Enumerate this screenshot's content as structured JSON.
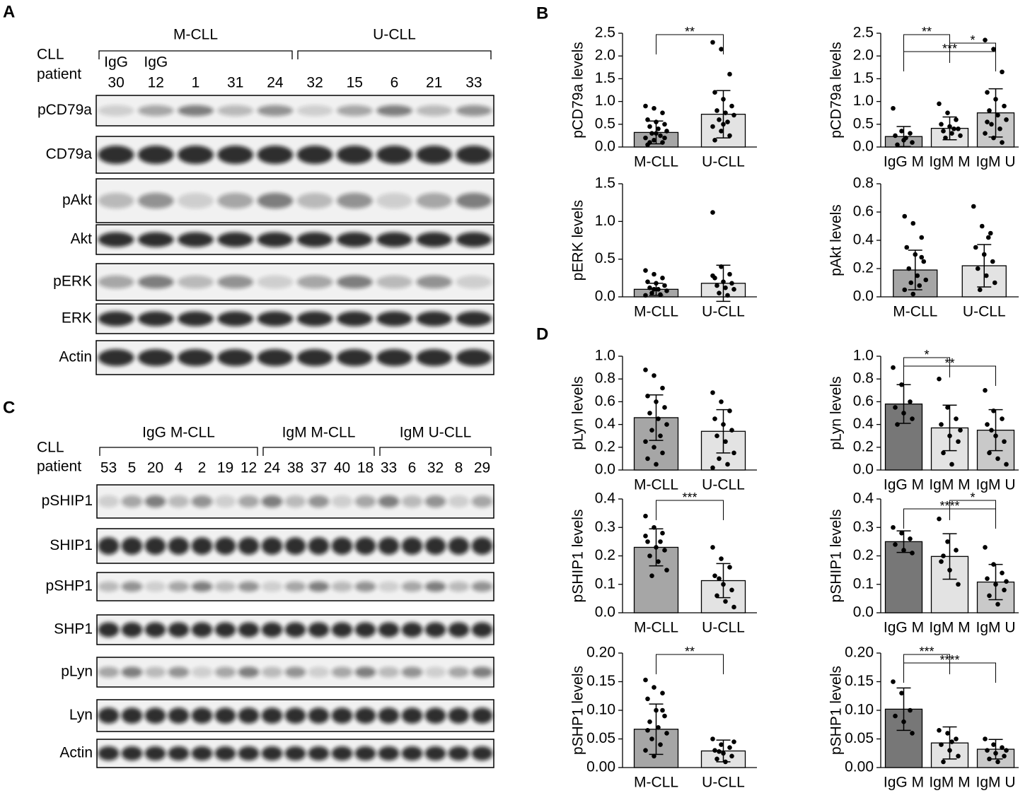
{
  "panel_labels": [
    "A",
    "B",
    "C",
    "D"
  ],
  "blots": [
    {
      "row_header": [
        "CLL",
        "patient"
      ],
      "groups": [
        {
          "label": "M-CLL",
          "lanes": [
            "30",
            "12",
            "1",
            "31",
            "24"
          ]
        },
        {
          "label": "U-CLL",
          "lanes": [
            "32",
            "15",
            "6",
            "21",
            "33"
          ]
        }
      ],
      "isotype_labels": [
        "IgG",
        "IgG"
      ],
      "rows": [
        "pCD79a",
        "CD79a",
        "pAkt",
        "Akt",
        "pERK",
        "ERK",
        "Actin"
      ]
    },
    {
      "row_header": [
        "CLL",
        "patient"
      ],
      "groups": [
        {
          "label": "IgG M-CLL",
          "lanes": [
            "53",
            "5",
            "20",
            "4",
            "2",
            "19",
            "12"
          ]
        },
        {
          "label": "IgM M-CLL",
          "lanes": [
            "24",
            "38",
            "37",
            "40",
            "18"
          ]
        },
        {
          "label": "IgM U-CLL",
          "lanes": [
            "33",
            "6",
            "32",
            "8",
            "29"
          ]
        }
      ],
      "isotype_labels": [],
      "rows": [
        "pSHIP1",
        "SHIP1",
        "pSHP1",
        "SHP1",
        "pLyn",
        "Lyn",
        "Actin"
      ]
    }
  ],
  "chart_data": [
    {
      "type": "bar",
      "y_label": "pCD79a levels",
      "categories": [
        "M-CLL",
        "U-CLL"
      ],
      "colors": [
        "#a6a6a6",
        "#e3e3e3"
      ],
      "values": [
        0.32,
        0.72
      ],
      "errors": [
        0.25,
        0.52
      ],
      "points": [
        [
          0.9,
          0.85,
          0.75,
          0.6,
          0.55,
          0.5,
          0.45,
          0.4,
          0.35,
          0.3,
          0.25,
          0.2,
          0.15,
          0.1,
          0.05,
          0.3,
          0.2,
          0.1
        ],
        [
          2.3,
          2.15,
          1.6,
          1.2,
          1.05,
          0.9,
          0.8,
          0.75,
          0.7,
          0.6,
          0.55,
          0.45,
          0.35,
          0.25,
          0.15,
          0.5
        ]
      ],
      "ylim": [
        0,
        2.5
      ],
      "yticks": [
        {
          "value": 0,
          "label": "0.0"
        },
        0.5,
        {
          "value": 1,
          "label": "1.0"
        },
        1.5,
        {
          "value": 2,
          "label": "2.0"
        },
        2.5
      ],
      "annotations": [
        {
          "from": 0,
          "to": 1,
          "label": "**"
        }
      ]
    },
    {
      "type": "bar",
      "y_label": "pCD79a levels",
      "categories": [
        "IgG M",
        "IgM M",
        "IgM U"
      ],
      "colors": [
        "#a6a6a6",
        "#e3e3e3",
        "#c9c9c9"
      ],
      "values": [
        0.23,
        0.41,
        0.75
      ],
      "errors": [
        0.22,
        0.25,
        0.53
      ],
      "points": [
        [
          0.85,
          0.35,
          0.3,
          0.25,
          0.15,
          0.1,
          0.05,
          0.2
        ],
        [
          0.95,
          0.75,
          0.6,
          0.5,
          0.45,
          0.4,
          0.35,
          0.3,
          0.25,
          0.2,
          0.4
        ],
        [
          2.35,
          2.15,
          1.65,
          1.2,
          1.05,
          0.9,
          0.8,
          0.7,
          0.6,
          0.5,
          0.4,
          0.3,
          0.2,
          0.1,
          0.55
        ]
      ],
      "ylim": [
        0,
        2.5
      ],
      "yticks": [
        {
          "value": 0,
          "label": "0.0"
        },
        0.5,
        {
          "value": 1,
          "label": "1.0"
        },
        1.5,
        {
          "value": 2,
          "label": "2.0"
        },
        2.5
      ],
      "annotations": [
        {
          "from": 0,
          "to": 1,
          "label": "**"
        },
        {
          "from": 1,
          "to": 2,
          "label": "*"
        },
        {
          "from": 0,
          "to": 2,
          "label": "***"
        }
      ]
    },
    {
      "type": "bar",
      "y_label": "pERK levels",
      "categories": [
        "M-CLL",
        "U-CLL"
      ],
      "colors": [
        "#a6a6a6",
        "#e3e3e3"
      ],
      "values": [
        0.1,
        0.18
      ],
      "errors": [
        0.08,
        0.24
      ],
      "points": [
        [
          0.35,
          0.3,
          0.25,
          0.2,
          0.18,
          0.15,
          0.12,
          0.1,
          0.08,
          0.05,
          0.03,
          0.02,
          0.1
        ],
        [
          1.12,
          0.4,
          0.3,
          0.25,
          0.2,
          0.18,
          0.15,
          0.12,
          0.1,
          0.05,
          0.02,
          0.28
        ]
      ],
      "ylim": [
        0,
        1.5
      ],
      "yticks": [
        {
          "value": 0,
          "label": "0.0"
        },
        0.5,
        {
          "value": 1,
          "label": "1.0"
        },
        1.5
      ],
      "annotations": []
    },
    {
      "type": "bar",
      "y_label": "pAkt levels",
      "categories": [
        "M-CLL",
        "U-CLL"
      ],
      "colors": [
        "#a6a6a6",
        "#e3e3e3"
      ],
      "values": [
        0.19,
        0.22
      ],
      "errors": [
        0.14,
        0.15
      ],
      "points": [
        [
          0.57,
          0.52,
          0.42,
          0.35,
          0.3,
          0.25,
          0.2,
          0.15,
          0.12,
          0.1,
          0.08,
          0.05,
          0.02,
          0.28
        ],
        [
          0.64,
          0.5,
          0.45,
          0.35,
          0.3,
          0.25,
          0.2,
          0.15,
          0.1,
          0.05,
          0.42
        ]
      ],
      "ylim": [
        0,
        0.8
      ],
      "yticks": [
        {
          "value": 0,
          "label": "0.0"
        },
        0.2,
        0.4,
        0.6,
        0.8
      ],
      "annotations": []
    },
    {
      "type": "bar",
      "y_label": "pLyn levels",
      "categories": [
        "M-CLL",
        "U-CLL"
      ],
      "colors": [
        "#a6a6a6",
        "#e3e3e3"
      ],
      "values": [
        0.46,
        0.34
      ],
      "errors": [
        0.2,
        0.19
      ],
      "points": [
        [
          0.88,
          0.83,
          0.72,
          0.65,
          0.6,
          0.55,
          0.5,
          0.45,
          0.4,
          0.35,
          0.3,
          0.25,
          0.2,
          0.15,
          0.1,
          0.05
        ],
        [
          0.68,
          0.6,
          0.52,
          0.45,
          0.4,
          0.35,
          0.3,
          0.25,
          0.15,
          0.1,
          0.05,
          0.02
        ]
      ],
      "ylim": [
        0,
        1
      ],
      "yticks": [
        {
          "value": 0,
          "label": "0.0"
        },
        0.2,
        0.4,
        0.6,
        0.8,
        {
          "value": 1,
          "label": "1.0"
        }
      ],
      "annotations": []
    },
    {
      "type": "bar",
      "y_label": "pLyn levels",
      "categories": [
        "IgG M",
        "IgM M",
        "IgM U"
      ],
      "colors": [
        "#777777",
        "#e3e3e3",
        "#c9c9c9"
      ],
      "values": [
        0.58,
        0.37,
        0.35
      ],
      "errors": [
        0.17,
        0.2,
        0.18
      ],
      "points": [
        [
          0.9,
          0.75,
          0.6,
          0.55,
          0.5,
          0.45,
          0.4
        ],
        [
          0.8,
          0.55,
          0.45,
          0.4,
          0.3,
          0.25,
          0.15,
          0.05,
          0.35
        ],
        [
          0.7,
          0.52,
          0.45,
          0.4,
          0.3,
          0.25,
          0.15,
          0.1,
          0.05,
          0.35
        ]
      ],
      "ylim": [
        0,
        1
      ],
      "yticks": [
        {
          "value": 0,
          "label": "0.0"
        },
        0.2,
        0.4,
        0.6,
        0.8,
        {
          "value": 1,
          "label": "1.0"
        }
      ],
      "annotations": [
        {
          "from": 0,
          "to": 1,
          "label": "*"
        },
        {
          "from": 0,
          "to": 2,
          "label": "**"
        }
      ]
    },
    {
      "type": "bar",
      "y_label": "pSHIP1 levels",
      "categories": [
        "M-CLL",
        "U-CLL"
      ],
      "colors": [
        "#a6a6a6",
        "#e3e3e3"
      ],
      "values": [
        0.23,
        0.113
      ],
      "errors": [
        0.065,
        0.06
      ],
      "points": [
        [
          0.34,
          0.3,
          0.28,
          0.25,
          0.23,
          0.22,
          0.2,
          0.18,
          0.15,
          0.13,
          0.25,
          0.27
        ],
        [
          0.23,
          0.19,
          0.16,
          0.13,
          0.1,
          0.08,
          0.06,
          0.04,
          0.02,
          0.12
        ]
      ],
      "ylim": [
        0,
        0.4
      ],
      "yticks": [
        {
          "value": 0,
          "label": "0.0"
        },
        0.1,
        0.2,
        0.3,
        0.4
      ],
      "annotations": [
        {
          "from": 0,
          "to": 1,
          "label": "***"
        }
      ]
    },
    {
      "type": "bar",
      "y_label": "pSHIP1 levels",
      "categories": [
        "IgG M",
        "IgM M",
        "IgM U"
      ],
      "colors": [
        "#777777",
        "#e3e3e3",
        "#c9c9c9"
      ],
      "values": [
        0.25,
        0.198,
        0.108
      ],
      "errors": [
        0.038,
        0.08,
        0.062
      ],
      "points": [
        [
          0.3,
          0.28,
          0.26,
          0.24,
          0.22,
          0.21
        ],
        [
          0.33,
          0.25,
          0.22,
          0.18,
          0.15,
          0.1,
          0.2
        ],
        [
          0.23,
          0.17,
          0.14,
          0.12,
          0.1,
          0.08,
          0.06,
          0.03,
          0.11
        ]
      ],
      "ylim": [
        0,
        0.4
      ],
      "yticks": [
        {
          "value": 0,
          "label": "0.0"
        },
        0.1,
        0.2,
        0.3,
        0.4
      ],
      "annotations": [
        {
          "from": 1,
          "to": 2,
          "label": "*"
        },
        {
          "from": 0,
          "to": 2,
          "label": "****"
        }
      ]
    },
    {
      "type": "bar",
      "y_label": "pSHP1 levels",
      "categories": [
        "M-CLL",
        "U-CLL"
      ],
      "colors": [
        "#a6a6a6",
        "#e3e3e3"
      ],
      "values": [
        0.067,
        0.029
      ],
      "errors": [
        0.044,
        0.019
      ],
      "points": [
        [
          0.153,
          0.14,
          0.13,
          0.12,
          0.1,
          0.09,
          0.08,
          0.07,
          0.06,
          0.05,
          0.04,
          0.03,
          0.02,
          0.1,
          0.065
        ],
        [
          0.05,
          0.04,
          0.035,
          0.03,
          0.025,
          0.02,
          0.015,
          0.01,
          0.045,
          0.028
        ]
      ],
      "ylim": [
        0,
        0.2
      ],
      "yticks": [
        {
          "value": 0,
          "label": "0.00"
        },
        {
          "value": 0.05,
          "label": "0.05"
        },
        {
          "value": 0.1,
          "label": "0.10"
        },
        {
          "value": 0.15,
          "label": "0.15"
        },
        {
          "value": 0.2,
          "label": "0.20"
        }
      ],
      "annotations": [
        {
          "from": 0,
          "to": 1,
          "label": "**"
        }
      ]
    },
    {
      "type": "bar",
      "y_label": "pSHP1 levels",
      "categories": [
        "IgG M",
        "IgM M",
        "IgM U"
      ],
      "colors": [
        "#777777",
        "#e3e3e3",
        "#c9c9c9"
      ],
      "values": [
        0.102,
        0.043,
        0.032
      ],
      "errors": [
        0.037,
        0.028,
        0.017
      ],
      "points": [
        [
          0.15,
          0.13,
          0.1,
          0.09,
          0.08,
          0.06
        ],
        [
          0.065,
          0.06,
          0.05,
          0.04,
          0.03,
          0.02,
          0.01,
          0.045
        ],
        [
          0.05,
          0.04,
          0.035,
          0.03,
          0.025,
          0.02,
          0.015,
          0.01,
          0.03
        ]
      ],
      "ylim": [
        0,
        0.2
      ],
      "yticks": [
        {
          "value": 0,
          "label": "0.00"
        },
        {
          "value": 0.05,
          "label": "0.05"
        },
        {
          "value": 0.1,
          "label": "0.10"
        },
        {
          "value": 0.15,
          "label": "0.15"
        },
        {
          "value": 0.2,
          "label": "0.20"
        }
      ],
      "annotations": [
        {
          "from": 0,
          "to": 1,
          "label": "***"
        },
        {
          "from": 0,
          "to": 2,
          "label": "****"
        }
      ]
    }
  ]
}
